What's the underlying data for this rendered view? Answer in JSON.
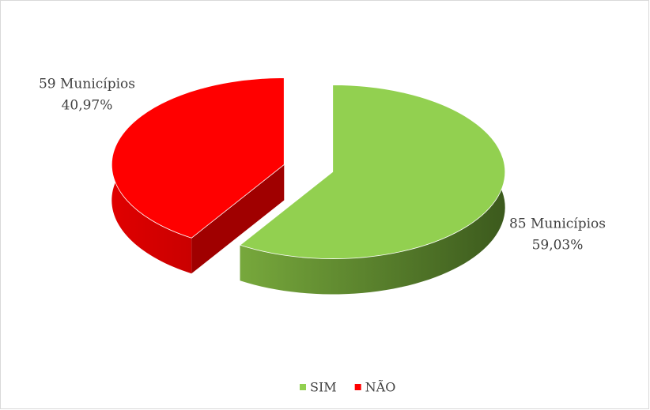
{
  "chart_data": {
    "type": "pie3d",
    "categories": [
      "SIM",
      "NÃO"
    ],
    "values": [
      85,
      59
    ],
    "value_labels": [
      "85 Municípios",
      "59 Municípios"
    ],
    "percentages": [
      59.03,
      40.97
    ],
    "percentage_labels": [
      "59,03%",
      "40,97%"
    ],
    "colors": [
      "#92d050",
      "#ff0000"
    ],
    "legend": "bottom"
  }
}
